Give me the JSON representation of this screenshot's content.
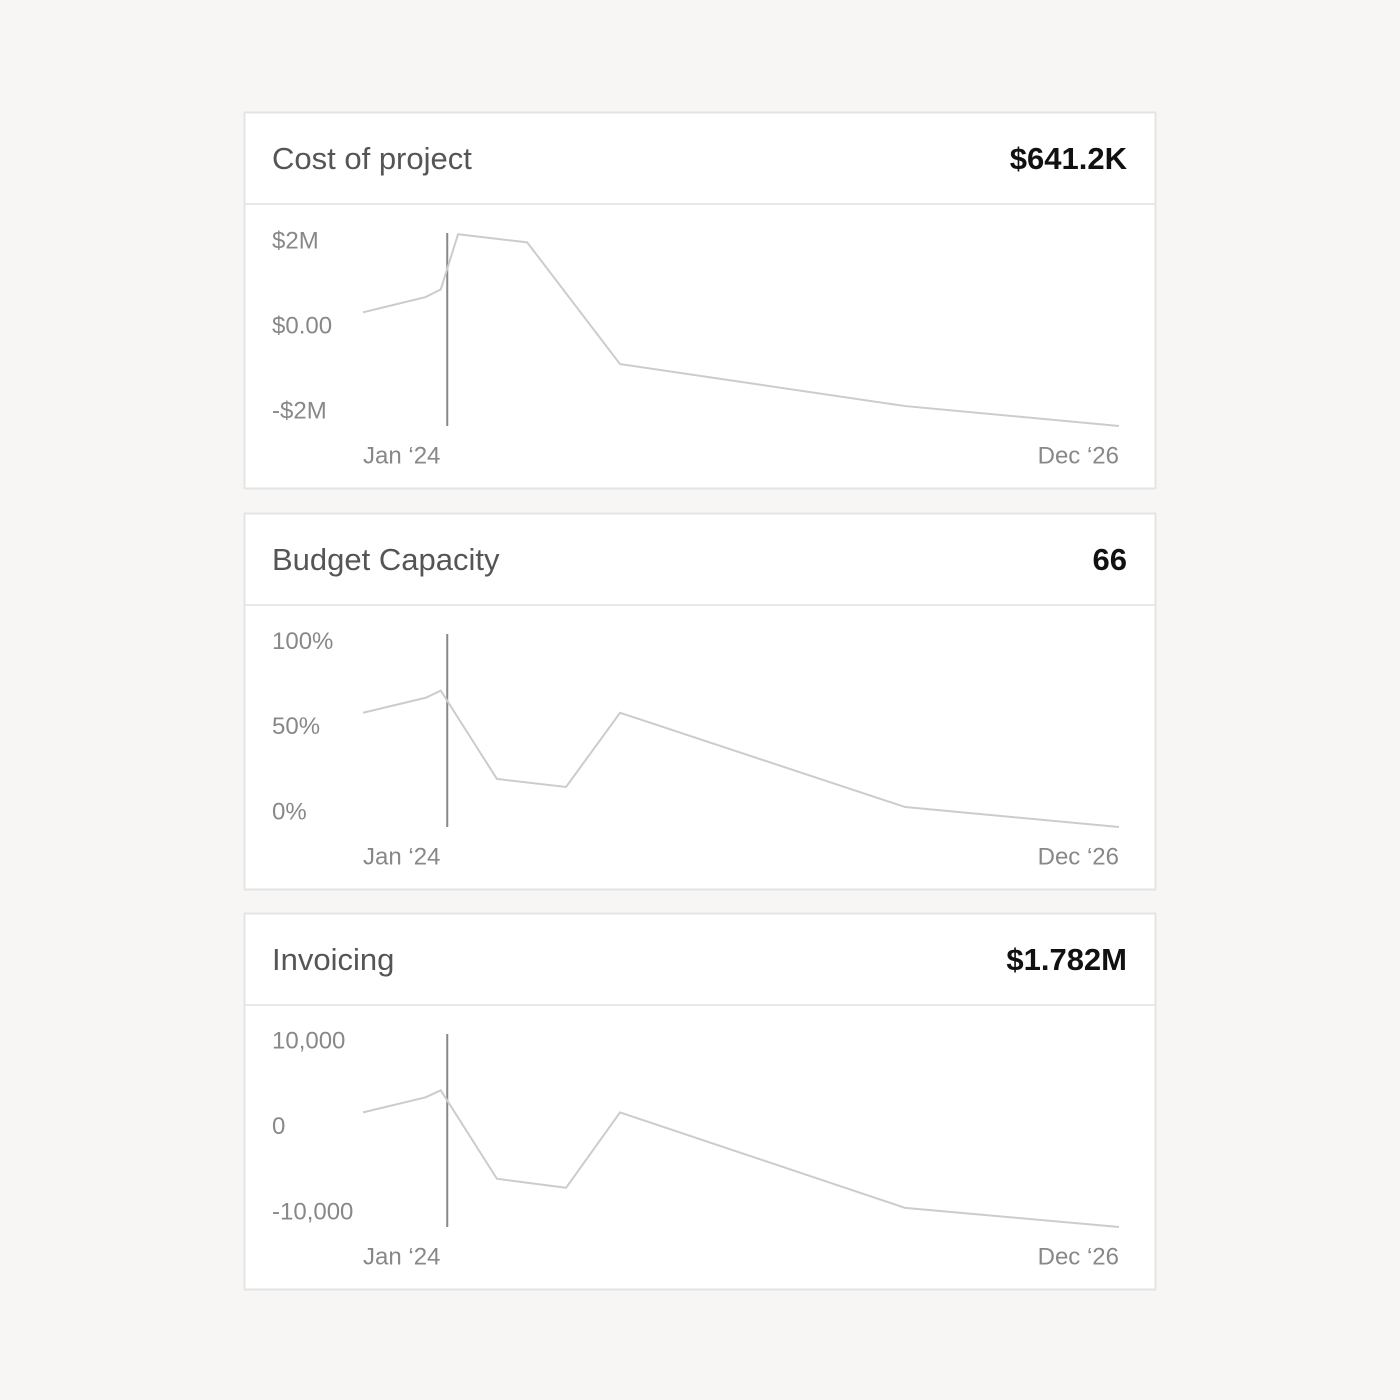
{
  "chart_data": [
    {
      "type": "line",
      "title": "Cost of project",
      "headline": "$641.2K",
      "x": [
        0,
        2.9,
        3.6,
        4.4,
        7.6,
        11.9,
        25.1,
        35
      ],
      "series": [
        {
          "color": "#cccccc",
          "values": [
            350000,
            710000,
            890000,
            2190000,
            2000000,
            -870000,
            -1860000,
            -2330000
          ]
        }
      ],
      "xlim": [
        0,
        35
      ],
      "xticks": [
        {
          "value": 0,
          "label": "Jan ‘24"
        },
        {
          "value": 35,
          "label": "Dec ‘26"
        }
      ],
      "ylim": [
        -2330000,
        2220000
      ],
      "yticks": [
        {
          "value": 2000000,
          "label": "$2M"
        },
        {
          "value": 0,
          "label": "$0.00"
        },
        {
          "value": -2000000,
          "label": "-$2M"
        }
      ],
      "marker_x": 3.9,
      "marker_color": "#888888"
    },
    {
      "type": "line",
      "title": "Budget Capacity",
      "headline": "66",
      "x": [
        0,
        2.9,
        3.6,
        6.2,
        9.4,
        11.9,
        25.1,
        35
      ],
      "series": [
        {
          "color": "#cccccc",
          "values": [
            58.8,
            67.6,
            71.8,
            20,
            15.3,
            58.8,
            3.5,
            -8.2
          ]
        }
      ],
      "xlim": [
        0,
        35
      ],
      "xticks": [
        {
          "value": 0,
          "label": "Jan ‘24"
        },
        {
          "value": 35,
          "label": "Dec ‘26"
        }
      ],
      "ylim": [
        -8.2,
        105
      ],
      "yticks": [
        {
          "value": 100,
          "label": "100%"
        },
        {
          "value": 50,
          "label": "50%"
        },
        {
          "value": 0,
          "label": "0%"
        }
      ],
      "marker_x": 3.9,
      "marker_color": "#888888"
    },
    {
      "type": "line",
      "title": "Invoicing",
      "headline": "$1.782M",
      "x": [
        0,
        2.9,
        3.6,
        6.2,
        9.4,
        11.9,
        25.1,
        35
      ],
      "series": [
        {
          "color": "#cccccc",
          "values": [
            1765,
            3529,
            4353,
            -6000,
            -7059,
            1765,
            -9412,
            -11647
          ]
        }
      ],
      "xlim": [
        0,
        35
      ],
      "xticks": [
        {
          "value": 0,
          "label": "Jan ‘24"
        },
        {
          "value": 35,
          "label": "Dec ‘26"
        }
      ],
      "ylim": [
        -11647,
        10941
      ],
      "yticks": [
        {
          "value": 10000,
          "label": "10,000"
        },
        0,
        {
          "value": -10000,
          "label": "-10,000"
        }
      ],
      "marker_x": 3.9,
      "marker_color": "#888888"
    }
  ]
}
